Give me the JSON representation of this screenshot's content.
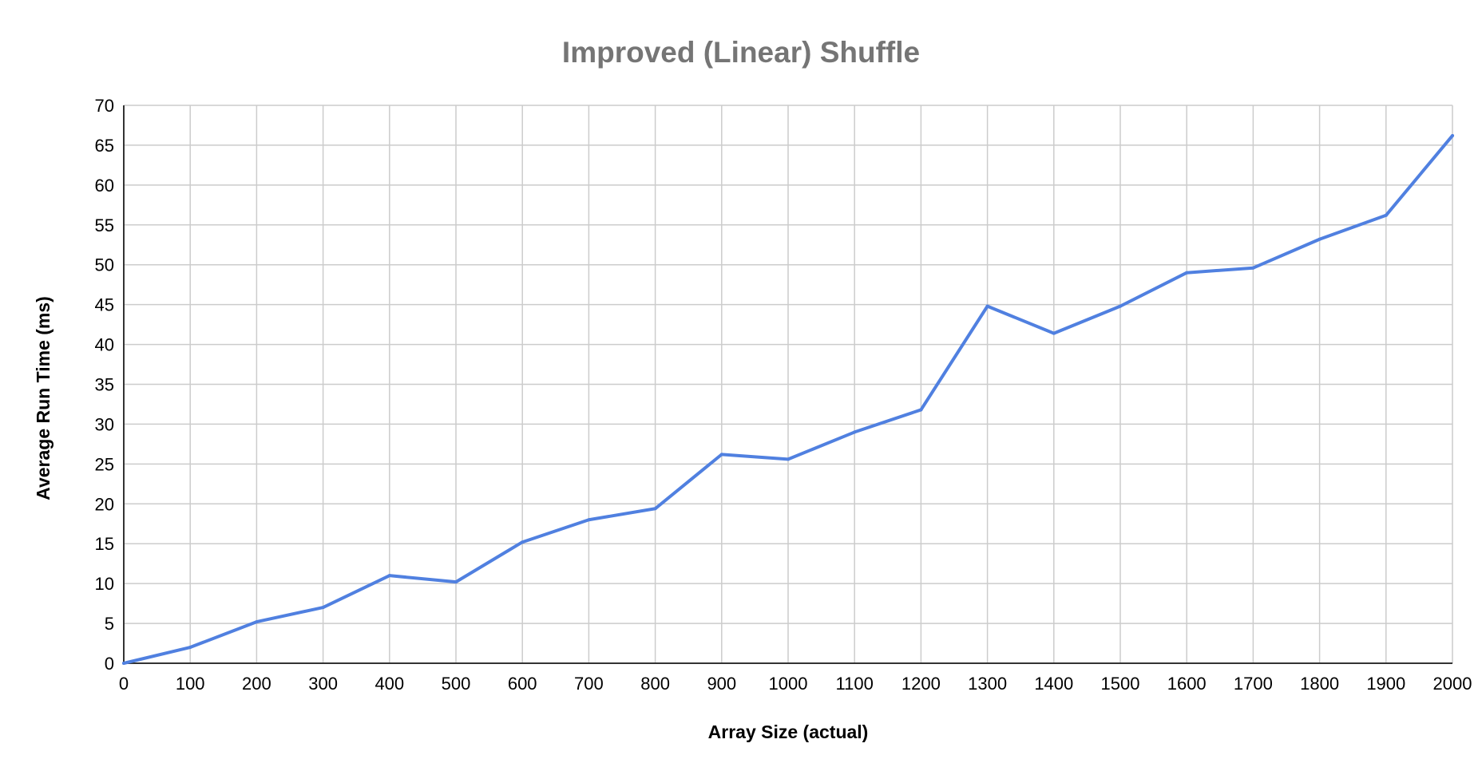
{
  "chart_data": {
    "type": "line",
    "title": "Improved (Linear) Shuffle",
    "xlabel": "Array Size (actual)",
    "ylabel": "Average Run Time (ms)",
    "xlim": [
      0,
      2000
    ],
    "ylim": [
      0,
      70
    ],
    "x_ticks": [
      0,
      100,
      200,
      300,
      400,
      500,
      600,
      700,
      800,
      900,
      1000,
      1100,
      1200,
      1300,
      1400,
      1500,
      1600,
      1700,
      1800,
      1900,
      2000
    ],
    "y_ticks": [
      0,
      5,
      10,
      15,
      20,
      25,
      30,
      35,
      40,
      45,
      50,
      55,
      60,
      65,
      70
    ],
    "grid": true,
    "legend": "none",
    "series": [
      {
        "color": "#5080e0",
        "x": [
          0,
          100,
          200,
          300,
          400,
          500,
          600,
          700,
          800,
          900,
          1000,
          1100,
          1200,
          1300,
          1400,
          1500,
          1600,
          1700,
          1800,
          1900,
          2000
        ],
        "values": [
          0,
          2,
          5.2,
          7,
          11,
          10.2,
          15.2,
          18,
          19.4,
          26.2,
          25.6,
          29,
          31.8,
          44.8,
          41.4,
          44.8,
          49,
          49.6,
          53.2,
          56.2,
          66.2
        ]
      }
    ]
  }
}
